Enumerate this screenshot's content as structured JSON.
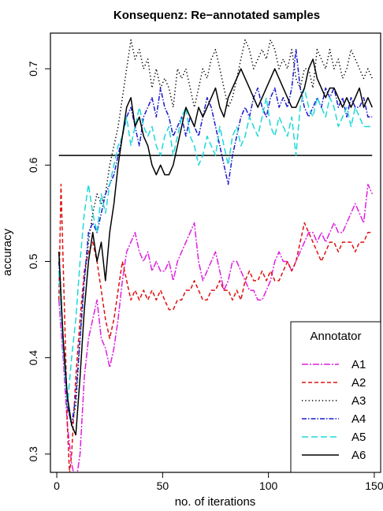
{
  "chart_data": {
    "type": "line",
    "title": "Konsequenz: Re−annotated samples",
    "xlabel": "no. of iterations",
    "ylabel": "accuracy",
    "xlim": [
      -3,
      153
    ],
    "ylim": [
      0.281,
      0.737
    ],
    "xticks": [
      0,
      50,
      100,
      150
    ],
    "yticks": [
      0.3,
      0.4,
      0.5,
      0.6,
      0.7
    ],
    "grid": false,
    "legend_position": "bottom-right",
    "legend_title": "Annotator",
    "reference_line": {
      "y": 0.61,
      "x": [
        1,
        149
      ]
    },
    "series": [
      {
        "name": "A1",
        "color": "#e01ee0",
        "dash": "8 2 2 2",
        "x": [
          1,
          3,
          5,
          7,
          9,
          11,
          13,
          15,
          17,
          19,
          21,
          23,
          25,
          27,
          29,
          31,
          33,
          35,
          37,
          39,
          41,
          43,
          45,
          47,
          49,
          51,
          53,
          55,
          57,
          59,
          61,
          63,
          65,
          67,
          69,
          71,
          73,
          75,
          77,
          79,
          81,
          83,
          85,
          87,
          89,
          91,
          93,
          95,
          97,
          99,
          101,
          103,
          105,
          107,
          109,
          111,
          113,
          115,
          117,
          119,
          121,
          123,
          125,
          127,
          129,
          131,
          133,
          135,
          137,
          139,
          141,
          143,
          145,
          147,
          149
        ],
        "y": [
          0.46,
          0.4,
          0.33,
          0.29,
          0.27,
          0.3,
          0.38,
          0.42,
          0.44,
          0.46,
          0.42,
          0.41,
          0.39,
          0.41,
          0.44,
          0.48,
          0.51,
          0.52,
          0.53,
          0.51,
          0.5,
          0.51,
          0.49,
          0.5,
          0.49,
          0.49,
          0.5,
          0.48,
          0.5,
          0.51,
          0.52,
          0.53,
          0.54,
          0.5,
          0.48,
          0.49,
          0.5,
          0.51,
          0.49,
          0.47,
          0.48,
          0.5,
          0.5,
          0.49,
          0.48,
          0.47,
          0.47,
          0.46,
          0.46,
          0.47,
          0.48,
          0.5,
          0.51,
          0.5,
          0.5,
          0.49,
          0.5,
          0.51,
          0.52,
          0.53,
          0.53,
          0.52,
          0.53,
          0.52,
          0.53,
          0.54,
          0.53,
          0.53,
          0.54,
          0.55,
          0.56,
          0.55,
          0.54,
          0.58,
          0.57
        ]
      },
      {
        "name": "A2",
        "color": "#e01010",
        "dash": "5 3",
        "x": [
          1,
          2,
          3,
          4,
          5,
          6,
          7,
          9,
          11,
          13,
          15,
          17,
          19,
          21,
          23,
          25,
          27,
          29,
          31,
          33,
          35,
          37,
          39,
          41,
          43,
          45,
          47,
          49,
          51,
          53,
          55,
          57,
          59,
          61,
          63,
          65,
          67,
          69,
          71,
          73,
          75,
          77,
          79,
          81,
          83,
          85,
          87,
          89,
          91,
          93,
          95,
          97,
          99,
          101,
          103,
          105,
          107,
          109,
          111,
          113,
          115,
          117,
          119,
          121,
          123,
          125,
          127,
          129,
          131,
          133,
          135,
          137,
          139,
          141,
          143,
          145,
          147,
          149
        ],
        "y": [
          0.46,
          0.58,
          0.5,
          0.42,
          0.33,
          0.28,
          0.3,
          0.38,
          0.44,
          0.49,
          0.51,
          0.52,
          0.5,
          0.47,
          0.44,
          0.42,
          0.44,
          0.47,
          0.5,
          0.48,
          0.46,
          0.47,
          0.46,
          0.47,
          0.46,
          0.47,
          0.46,
          0.47,
          0.46,
          0.45,
          0.45,
          0.46,
          0.46,
          0.47,
          0.47,
          0.48,
          0.47,
          0.46,
          0.46,
          0.47,
          0.47,
          0.48,
          0.47,
          0.47,
          0.46,
          0.47,
          0.46,
          0.48,
          0.49,
          0.48,
          0.48,
          0.49,
          0.48,
          0.49,
          0.48,
          0.48,
          0.49,
          0.5,
          0.49,
          0.5,
          0.52,
          0.54,
          0.53,
          0.52,
          0.51,
          0.5,
          0.51,
          0.52,
          0.52,
          0.51,
          0.52,
          0.52,
          0.52,
          0.51,
          0.52,
          0.52,
          0.53,
          0.53
        ]
      },
      {
        "name": "A3",
        "color": "#000000",
        "dash": "1.3 3",
        "x": [
          1,
          3,
          5,
          7,
          9,
          11,
          13,
          15,
          17,
          19,
          21,
          23,
          25,
          27,
          29,
          31,
          33,
          35,
          37,
          39,
          41,
          43,
          45,
          47,
          49,
          51,
          53,
          55,
          57,
          59,
          61,
          63,
          65,
          67,
          69,
          71,
          73,
          75,
          77,
          79,
          81,
          83,
          85,
          87,
          89,
          91,
          93,
          95,
          97,
          99,
          101,
          103,
          105,
          107,
          109,
          111,
          113,
          115,
          117,
          119,
          121,
          123,
          125,
          127,
          129,
          131,
          133,
          135,
          137,
          139,
          141,
          143,
          145,
          147,
          149
        ],
        "y": [
          0.51,
          0.42,
          0.35,
          0.33,
          0.35,
          0.42,
          0.48,
          0.52,
          0.55,
          0.57,
          0.56,
          0.57,
          0.6,
          0.62,
          0.64,
          0.67,
          0.7,
          0.73,
          0.71,
          0.72,
          0.7,
          0.71,
          0.68,
          0.7,
          0.68,
          0.69,
          0.68,
          0.66,
          0.7,
          0.69,
          0.7,
          0.68,
          0.66,
          0.68,
          0.7,
          0.69,
          0.71,
          0.72,
          0.7,
          0.68,
          0.66,
          0.67,
          0.69,
          0.71,
          0.73,
          0.72,
          0.7,
          0.71,
          0.72,
          0.71,
          0.73,
          0.72,
          0.7,
          0.71,
          0.7,
          0.72,
          0.69,
          0.68,
          0.7,
          0.7,
          0.68,
          0.72,
          0.71,
          0.7,
          0.72,
          0.7,
          0.71,
          0.69,
          0.7,
          0.72,
          0.71,
          0.7,
          0.69,
          0.7,
          0.69
        ]
      },
      {
        "name": "A4",
        "color": "#1a1ad0",
        "dash": "6 2 1.5 2",
        "x": [
          1,
          3,
          5,
          7,
          9,
          11,
          13,
          15,
          17,
          19,
          21,
          23,
          25,
          27,
          29,
          31,
          33,
          35,
          37,
          39,
          41,
          43,
          45,
          47,
          49,
          51,
          53,
          55,
          57,
          59,
          61,
          63,
          65,
          67,
          69,
          71,
          73,
          75,
          77,
          79,
          81,
          83,
          85,
          87,
          89,
          91,
          93,
          95,
          97,
          99,
          101,
          103,
          105,
          107,
          109,
          111,
          113,
          115,
          117,
          119,
          121,
          123,
          125,
          127,
          129,
          131,
          133,
          135,
          137,
          139,
          141,
          143,
          145,
          147,
          149
        ],
        "y": [
          0.5,
          0.42,
          0.35,
          0.33,
          0.36,
          0.42,
          0.48,
          0.53,
          0.54,
          0.53,
          0.55,
          0.57,
          0.58,
          0.59,
          0.61,
          0.63,
          0.65,
          0.66,
          0.64,
          0.62,
          0.65,
          0.66,
          0.67,
          0.65,
          0.68,
          0.66,
          0.65,
          0.63,
          0.64,
          0.65,
          0.63,
          0.65,
          0.64,
          0.63,
          0.65,
          0.67,
          0.66,
          0.64,
          0.62,
          0.6,
          0.58,
          0.61,
          0.63,
          0.65,
          0.66,
          0.65,
          0.67,
          0.68,
          0.66,
          0.65,
          0.67,
          0.68,
          0.66,
          0.67,
          0.66,
          0.68,
          0.72,
          0.68,
          0.66,
          0.65,
          0.66,
          0.67,
          0.66,
          0.68,
          0.67,
          0.68,
          0.66,
          0.67,
          0.65,
          0.67,
          0.66,
          0.66,
          0.67,
          0.65,
          0.65
        ]
      },
      {
        "name": "A5",
        "color": "#1ed8d8",
        "dash": "8 4",
        "x": [
          1,
          3,
          5,
          7,
          9,
          11,
          13,
          15,
          17,
          19,
          21,
          23,
          25,
          27,
          29,
          31,
          33,
          35,
          37,
          39,
          41,
          43,
          45,
          47,
          49,
          51,
          53,
          55,
          57,
          59,
          61,
          63,
          65,
          67,
          69,
          71,
          73,
          75,
          77,
          79,
          81,
          83,
          85,
          87,
          89,
          91,
          93,
          95,
          97,
          99,
          101,
          103,
          105,
          107,
          109,
          111,
          113,
          115,
          117,
          119,
          121,
          123,
          125,
          127,
          129,
          131,
          133,
          135,
          137,
          139,
          141,
          143,
          145,
          147,
          149
        ],
        "y": [
          0.49,
          0.41,
          0.35,
          0.4,
          0.44,
          0.5,
          0.55,
          0.58,
          0.55,
          0.53,
          0.57,
          0.55,
          0.58,
          0.6,
          0.62,
          0.63,
          0.65,
          0.62,
          0.64,
          0.66,
          0.64,
          0.63,
          0.64,
          0.62,
          0.61,
          0.63,
          0.64,
          0.61,
          0.63,
          0.65,
          0.66,
          0.63,
          0.62,
          0.6,
          0.61,
          0.63,
          0.62,
          0.61,
          0.64,
          0.62,
          0.6,
          0.63,
          0.64,
          0.62,
          0.63,
          0.65,
          0.64,
          0.63,
          0.65,
          0.67,
          0.64,
          0.63,
          0.65,
          0.64,
          0.63,
          0.65,
          0.61,
          0.66,
          0.68,
          0.66,
          0.65,
          0.67,
          0.66,
          0.65,
          0.67,
          0.66,
          0.64,
          0.65,
          0.66,
          0.64,
          0.66,
          0.65,
          0.64,
          0.64,
          0.64
        ]
      },
      {
        "name": "A6",
        "color": "#000000",
        "dash": "",
        "x": [
          1,
          3,
          5,
          7,
          9,
          11,
          13,
          15,
          17,
          19,
          21,
          23,
          25,
          27,
          29,
          31,
          33,
          35,
          37,
          39,
          41,
          43,
          45,
          47,
          49,
          51,
          53,
          55,
          57,
          59,
          61,
          63,
          65,
          67,
          69,
          71,
          73,
          75,
          77,
          79,
          81,
          83,
          85,
          87,
          89,
          91,
          93,
          95,
          97,
          99,
          101,
          103,
          105,
          107,
          109,
          111,
          113,
          115,
          117,
          119,
          121,
          123,
          125,
          127,
          129,
          131,
          133,
          135,
          137,
          139,
          141,
          143,
          145,
          147,
          149
        ],
        "y": [
          0.51,
          0.42,
          0.36,
          0.33,
          0.32,
          0.38,
          0.45,
          0.5,
          0.53,
          0.5,
          0.52,
          0.48,
          0.53,
          0.56,
          0.6,
          0.63,
          0.66,
          0.67,
          0.64,
          0.65,
          0.63,
          0.62,
          0.6,
          0.59,
          0.6,
          0.59,
          0.59,
          0.6,
          0.62,
          0.64,
          0.66,
          0.65,
          0.64,
          0.66,
          0.65,
          0.66,
          0.67,
          0.68,
          0.66,
          0.65,
          0.67,
          0.68,
          0.69,
          0.7,
          0.69,
          0.68,
          0.67,
          0.66,
          0.67,
          0.68,
          0.69,
          0.7,
          0.69,
          0.68,
          0.67,
          0.66,
          0.66,
          0.67,
          0.68,
          0.7,
          0.71,
          0.69,
          0.68,
          0.67,
          0.68,
          0.68,
          0.67,
          0.66,
          0.67,
          0.66,
          0.67,
          0.68,
          0.66,
          0.67,
          0.66
        ]
      }
    ]
  }
}
